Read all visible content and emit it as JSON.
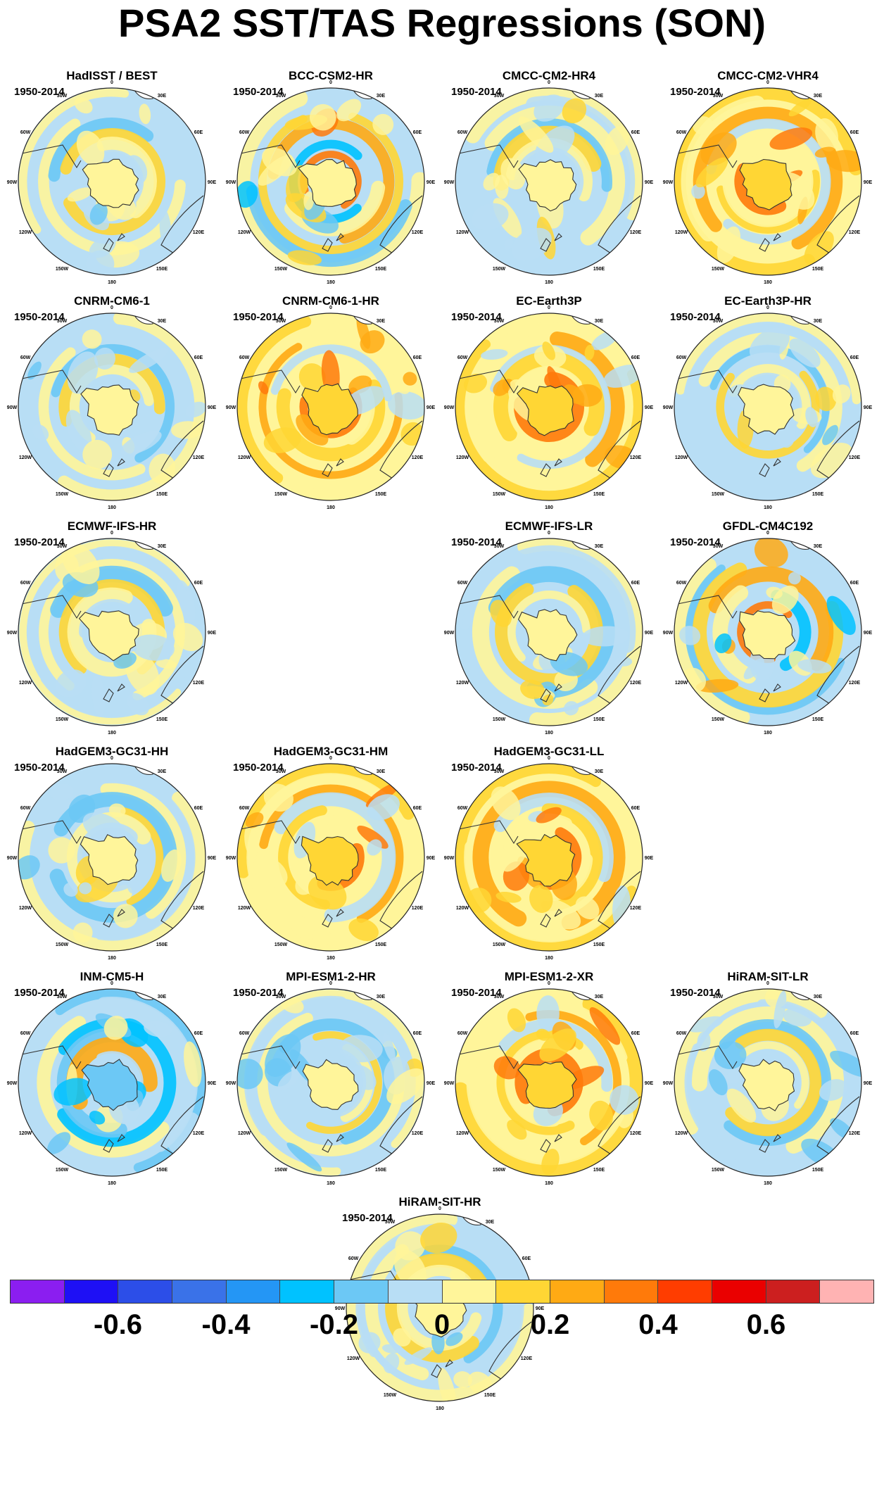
{
  "title": "PSA2 SST/TAS Regressions (SON)",
  "period": "1950-2014",
  "longitude_labels": [
    "0",
    "30E",
    "60E",
    "90E",
    "120E",
    "150E",
    "180",
    "150W",
    "120W",
    "90W",
    "60W",
    "30W"
  ],
  "panels": [
    {
      "name": "HadISST / BEST",
      "tone": "mixed"
    },
    {
      "name": "BCC-CSM2-HR",
      "tone": "warm-south"
    },
    {
      "name": "CMCC-CM2-HR4",
      "tone": "mixed"
    },
    {
      "name": "CMCC-CM2-VHR4",
      "tone": "warm"
    },
    {
      "name": "CNRM-CM6-1",
      "tone": "mixed"
    },
    {
      "name": "CNRM-CM6-1-HR",
      "tone": "warm"
    },
    {
      "name": "EC-Earth3P",
      "tone": "warm"
    },
    {
      "name": "EC-Earth3P-HR",
      "tone": "mixed"
    },
    {
      "name": "ECMWF-IFS-HR",
      "tone": "mixed"
    },
    {
      "name": "ECMWF-IFS-LR",
      "tone": "mixed"
    },
    {
      "name": "GFDL-CM4C192",
      "tone": "warm-south"
    },
    {
      "name": "HadGEM3-GC31-HH",
      "tone": "mixed"
    },
    {
      "name": "HadGEM3-GC31-HM",
      "tone": "warm"
    },
    {
      "name": "HadGEM3-GC31-LL",
      "tone": "warm"
    },
    {
      "name": "INM-CM5-H",
      "tone": "cool"
    },
    {
      "name": "MPI-ESM1-2-HR",
      "tone": "mixed"
    },
    {
      "name": "MPI-ESM1-2-XR",
      "tone": "warm"
    },
    {
      "name": "HiRAM-SIT-LR",
      "tone": "mixed"
    },
    {
      "name": "HiRAM-SIT-HR",
      "tone": "mixed"
    }
  ],
  "colorbar": {
    "colors": [
      "#8b1ef0",
      "#1e10f5",
      "#2c4ee8",
      "#3a72e8",
      "#2496f5",
      "#00c2ff",
      "#6cc8f5",
      "#b8def5",
      "#fff59a",
      "#ffd634",
      "#ffaa14",
      "#ff7a0a",
      "#ff3d00",
      "#ea0000",
      "#cc1f1f",
      "#ffb3b3"
    ],
    "labels": [
      "-0.6",
      "-0.4",
      "-0.2",
      "0",
      "0.2",
      "0.4",
      "0.6"
    ]
  }
}
